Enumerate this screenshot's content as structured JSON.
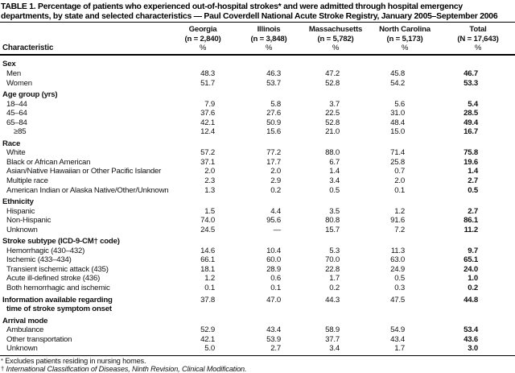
{
  "title": "TABLE 1. Percentage of patients who experienced out-of-hospital strokes* and were admitted through hospital emergency departments, by state and selected characteristics — Paul Coverdell National Acute Stroke Registry, January 2005–September 2006",
  "table": {
    "row_header": "Characteristic",
    "unit": "%",
    "columns": [
      {
        "name": "Georgia",
        "n": "(n = 2,840)"
      },
      {
        "name": "Illinois",
        "n": "(n = 3,848)"
      },
      {
        "name": "Massachusetts",
        "n": "(n = 5,782)"
      },
      {
        "name": "North Carolina",
        "n": "(n = 5,173)"
      },
      {
        "name": "Total",
        "n": "(N = 17,643)"
      }
    ],
    "rows": [
      {
        "type": "section",
        "label": "Sex",
        "values": [
          "",
          "",
          "",
          "",
          ""
        ]
      },
      {
        "type": "item",
        "label": "Men",
        "values": [
          "48.3",
          "46.3",
          "47.2",
          "45.8",
          "46.7"
        ]
      },
      {
        "type": "item",
        "label": "Women",
        "values": [
          "51.7",
          "53.7",
          "52.8",
          "54.2",
          "53.3"
        ]
      },
      {
        "type": "section",
        "label": "Age group (yrs)",
        "values": [
          "",
          "",
          "",
          "",
          ""
        ]
      },
      {
        "type": "item",
        "label": "18–44",
        "values": [
          "7.9",
          "5.8",
          "3.7",
          "5.6",
          "5.4"
        ]
      },
      {
        "type": "item",
        "label": "45–64",
        "values": [
          "37.6",
          "27.6",
          "22.5",
          "31.0",
          "28.5"
        ]
      },
      {
        "type": "item",
        "label": "65–84",
        "values": [
          "42.1",
          "50.9",
          "52.8",
          "48.4",
          "49.4"
        ]
      },
      {
        "type": "item2",
        "label": "≥85",
        "values": [
          "12.4",
          "15.6",
          "21.0",
          "15.0",
          "16.7"
        ]
      },
      {
        "type": "section",
        "label": "Race",
        "values": [
          "",
          "",
          "",
          "",
          ""
        ]
      },
      {
        "type": "item",
        "label": "White",
        "values": [
          "57.2",
          "77.2",
          "88.0",
          "71.4",
          "75.8"
        ]
      },
      {
        "type": "item",
        "label": "Black or African American",
        "values": [
          "37.1",
          "17.7",
          "6.7",
          "25.8",
          "19.6"
        ]
      },
      {
        "type": "item",
        "label": "Asian/Native Hawaiian or Other Pacific Islander",
        "values": [
          "2.0",
          "2.0",
          "1.4",
          "0.7",
          "1.4"
        ]
      },
      {
        "type": "item",
        "label": "Multiple race",
        "values": [
          "2.3",
          "2.9",
          "3.4",
          "2.0",
          "2.7"
        ]
      },
      {
        "type": "item",
        "label": "American Indian or Alaska Native/Other/Unknown",
        "values": [
          "1.3",
          "0.2",
          "0.5",
          "0.1",
          "0.5"
        ]
      },
      {
        "type": "section",
        "label": "Ethnicity",
        "values": [
          "",
          "",
          "",
          "",
          ""
        ]
      },
      {
        "type": "item",
        "label": "Hispanic",
        "values": [
          "1.5",
          "4.4",
          "3.5",
          "1.2",
          "2.7"
        ]
      },
      {
        "type": "item",
        "label": "Non-Hispanic",
        "values": [
          "74.0",
          "95.6",
          "80.8",
          "91.6",
          "86.1"
        ]
      },
      {
        "type": "item",
        "label": "Unknown",
        "values": [
          "24.5",
          "—",
          "15.7",
          "7.2",
          "11.2"
        ]
      },
      {
        "type": "section",
        "label": "Stroke subtype (ICD-9-CM† code)",
        "values": [
          "",
          "",
          "",
          "",
          ""
        ]
      },
      {
        "type": "item",
        "label": "Hemorrhagic (430–432)",
        "values": [
          "14.6",
          "10.4",
          "5.3",
          "11.3",
          "9.7"
        ]
      },
      {
        "type": "item",
        "label": "Ischemic (433–434)",
        "values": [
          "66.1",
          "60.0",
          "70.0",
          "63.0",
          "65.1"
        ]
      },
      {
        "type": "item",
        "label": "Transient ischemic attack (435)",
        "values": [
          "18.1",
          "28.9",
          "22.8",
          "24.9",
          "24.0"
        ]
      },
      {
        "type": "item",
        "label": "Acute ill-defined stroke (436)",
        "values": [
          "1.2",
          "0.6",
          "1.7",
          "0.5",
          "1.0"
        ]
      },
      {
        "type": "item",
        "label": "Both hemorrhagic and ischemic",
        "values": [
          "0.1",
          "0.1",
          "0.2",
          "0.3",
          "0.2"
        ]
      },
      {
        "type": "secdata",
        "label": "Information available regarding",
        "label2": "time of stroke symptom onset",
        "values": [
          "37.8",
          "47.0",
          "44.3",
          "47.5",
          "44.8"
        ]
      },
      {
        "type": "section",
        "label": "Arrival mode",
        "values": [
          "",
          "",
          "",
          "",
          ""
        ]
      },
      {
        "type": "item",
        "label": "Ambulance",
        "values": [
          "52.9",
          "43.4",
          "58.9",
          "54.9",
          "53.4"
        ]
      },
      {
        "type": "item",
        "label": "Other transportation",
        "values": [
          "42.1",
          "53.9",
          "37.7",
          "43.4",
          "43.6"
        ]
      },
      {
        "type": "item",
        "label": "Unknown",
        "values": [
          "5.0",
          "2.7",
          "3.4",
          "1.7",
          "3.0"
        ]
      }
    ]
  },
  "footnotes": [
    {
      "mark": "*",
      "text": "Excludes patients residing in nursing homes."
    },
    {
      "mark": "†",
      "text": "International Classification of Diseases, Ninth Revision, Clinical Modification."
    }
  ]
}
